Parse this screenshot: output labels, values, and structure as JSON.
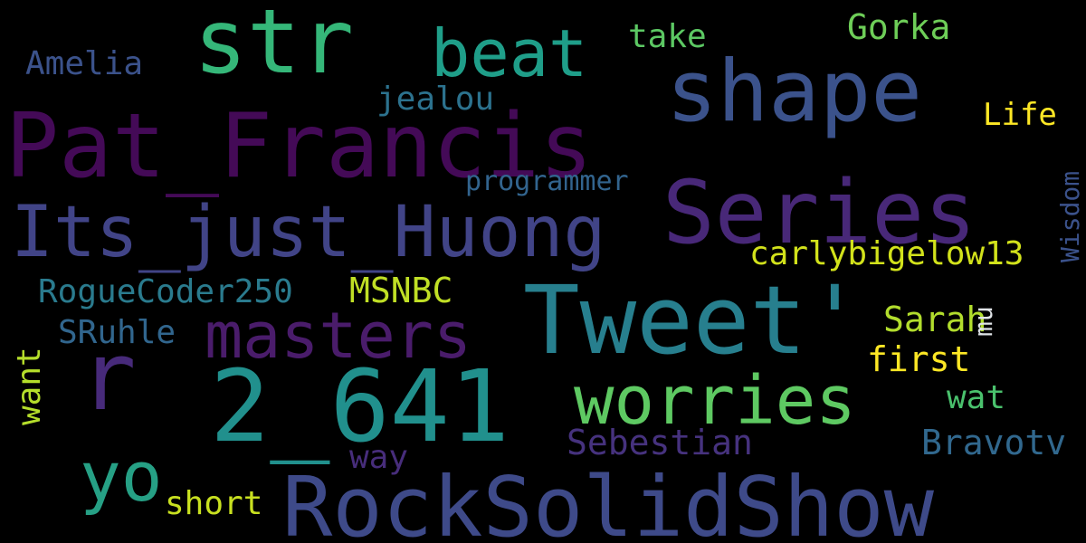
{
  "words": [
    {
      "text": "RockSolidShow",
      "color": "#3e4a89"
    },
    {
      "text": "Pat_Francis",
      "color": "#440a57"
    },
    {
      "text": "Tweet'",
      "color": "#277f8e"
    },
    {
      "text": "Series",
      "color": "#482878"
    },
    {
      "text": "shape",
      "color": "#3b528b"
    },
    {
      "text": "2_641",
      "color": "#21908d"
    },
    {
      "text": "Its_just_Huong",
      "color": "#414487"
    },
    {
      "text": "str",
      "color": "#35b779"
    },
    {
      "text": "masters",
      "color": "#4a1c6b"
    },
    {
      "text": "worries",
      "color": "#5ec962"
    },
    {
      "text": "beat",
      "color": "#1f9e89"
    },
    {
      "text": "r",
      "color": "#472a7a"
    },
    {
      "text": "yo",
      "color": "#26a085"
    },
    {
      "text": "Sebestian",
      "color": "#46327e"
    },
    {
      "text": "Bravotv",
      "color": "#31688e"
    },
    {
      "text": "carlybigelow13",
      "color": "#d2e21b"
    },
    {
      "text": "RogueCoder250",
      "color": "#2a7b8e"
    },
    {
      "text": "Sarah",
      "color": "#b2dd2d"
    },
    {
      "text": "MSNBC",
      "color": "#c0df25"
    },
    {
      "text": "short",
      "color": "#c8e020"
    },
    {
      "text": "SRuhle",
      "color": "#31668e"
    },
    {
      "text": "first",
      "color": "#fde725"
    },
    {
      "text": "wat",
      "color": "#4ac16d"
    },
    {
      "text": "Gorka",
      "color": "#6ece58"
    },
    {
      "text": "Amelia",
      "color": "#3b528b"
    },
    {
      "text": "take",
      "color": "#5cc863"
    },
    {
      "text": "jealou",
      "color": "#2c728e"
    },
    {
      "text": "Life",
      "color": "#fde725"
    },
    {
      "text": "programmer",
      "color": "#32648e"
    },
    {
      "text": "way",
      "color": "#472d7b"
    },
    {
      "text": "want",
      "color": "#b5de2b"
    },
    {
      "text": "mu",
      "color": "#e0e4e8"
    },
    {
      "text": "Wisdom",
      "color": "#3b528b"
    }
  ]
}
